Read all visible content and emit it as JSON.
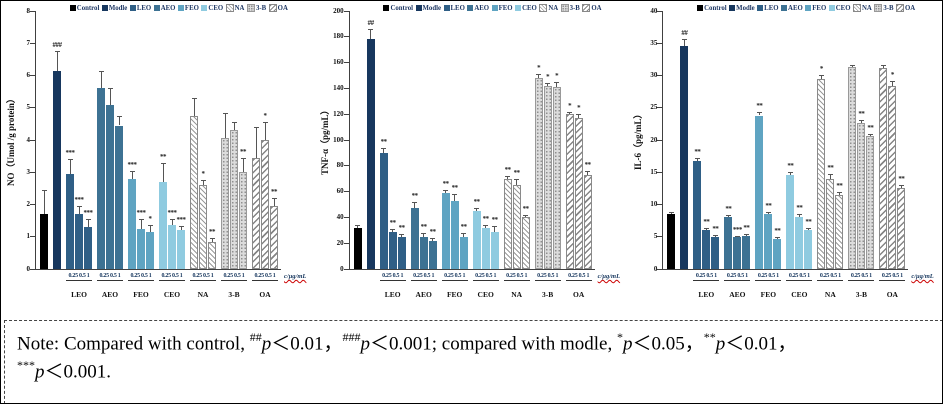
{
  "figure": {
    "colors": {
      "control": "#000000",
      "modle": "#17375E",
      "leo": "#2F5F86",
      "aeo": "#3D7293",
      "feo": "#5FA4C2",
      "ceo": "#8FCBE0",
      "legend_text": "#1F3864",
      "error_underline": "#CC0000"
    },
    "note": {
      "lead": "Note: Compared with control, ",
      "parts": [
        {
          "sup": "##",
          "text": "p＜0.01，"
        },
        {
          "sup": "###",
          "text": "p＜0.001; compared with modle, "
        },
        {
          "sup": "*",
          "text": "p＜0.05，"
        },
        {
          "sup": "**",
          "text": "p＜0.01，"
        },
        {
          "sup": "***",
          "text": "p＜0.001.",
          "newline_before": true
        }
      ]
    }
  },
  "chart_data": [
    {
      "type": "bar",
      "title": "",
      "ylabel": "NO（Umol /g protein）",
      "xlabel": "",
      "ylim": [
        0,
        8
      ],
      "ytick_step": 1,
      "grid": false,
      "legend_position": "top",
      "axis_unit_label": "c/μg/mL",
      "legend": [
        "Control",
        "Modle",
        "LEO",
        "AEO",
        "FEO",
        "CEO",
        "NA",
        "3-B",
        "OA"
      ],
      "groups": [
        {
          "name": "Control",
          "style": "control",
          "x_ticks": [],
          "values": [
            1.7
          ],
          "errors": [
            0.75
          ],
          "sig": [
            ""
          ]
        },
        {
          "name": "Modle",
          "style": "modle",
          "x_ticks": [],
          "values": [
            6.15
          ],
          "errors": [
            0.6
          ],
          "sig": [
            "###"
          ]
        },
        {
          "name": "LEO",
          "style": "leo",
          "x_ticks": [
            "0.25",
            "0.5",
            "1"
          ],
          "values": [
            2.95,
            1.7,
            1.3
          ],
          "errors": [
            0.45,
            0.25,
            0.25
          ],
          "sig": [
            "***",
            "***",
            "***"
          ]
        },
        {
          "name": "AEO",
          "style": "aeo",
          "x_ticks": [
            "0.25",
            "0.5",
            "1"
          ],
          "values": [
            5.6,
            5.1,
            4.45
          ],
          "errors": [
            0.55,
            0.5,
            0.3
          ],
          "sig": [
            "",
            "",
            ""
          ]
        },
        {
          "name": "FEO",
          "style": "feo",
          "x_ticks": [
            "0.25",
            "0.5",
            "1"
          ],
          "values": [
            2.8,
            1.25,
            1.15
          ],
          "errors": [
            0.25,
            0.3,
            0.2
          ],
          "sig": [
            "***",
            "***",
            "*"
          ]
        },
        {
          "name": "CEO",
          "style": "ceo",
          "x_ticks": [
            "0.25",
            "0.5",
            "1"
          ],
          "values": [
            2.7,
            1.35,
            1.2
          ],
          "errors": [
            0.6,
            0.2,
            0.12
          ],
          "sig": [
            "**",
            "***",
            "***"
          ]
        },
        {
          "name": "NA",
          "style": "na",
          "x_ticks": [
            "0.25",
            "0.5",
            "1"
          ],
          "values": [
            4.75,
            2.6,
            0.85
          ],
          "errors": [
            0.55,
            0.15,
            0.1
          ],
          "sig": [
            "",
            "*",
            "**"
          ]
        },
        {
          "name": "3-B",
          "style": "b3",
          "x_ticks": [
            "0.25",
            "0.5",
            "1"
          ],
          "values": [
            4.05,
            4.3,
            3.0
          ],
          "errors": [
            0.8,
            0.25,
            0.45
          ],
          "sig": [
            "",
            "",
            "**"
          ]
        },
        {
          "name": "OA",
          "style": "oa",
          "x_ticks": [
            "0.25",
            "0.5",
            "1"
          ],
          "values": [
            3.45,
            4.0,
            1.95
          ],
          "errors": [
            0.95,
            0.55,
            0.25
          ],
          "sig": [
            "",
            "*",
            "**"
          ]
        }
      ]
    },
    {
      "type": "bar",
      "title": "",
      "ylabel": "TNF-α（pg/mL）",
      "xlabel": "",
      "ylim": [
        0,
        200
      ],
      "ytick_step": 20,
      "grid": false,
      "legend_position": "top",
      "axis_unit_label": "c/μg/mL",
      "legend": [
        "Control",
        "Modle",
        "LEO",
        "AEO",
        "FEO",
        "CEO",
        "NA",
        "3-B",
        "OA"
      ],
      "groups": [
        {
          "name": "Control",
          "style": "control",
          "x_ticks": [],
          "values": [
            32
          ],
          "errors": [
            2
          ],
          "sig": [
            ""
          ]
        },
        {
          "name": "Modle",
          "style": "modle",
          "x_ticks": [],
          "values": [
            178
          ],
          "errors": [
            8
          ],
          "sig": [
            "##"
          ]
        },
        {
          "name": "LEO",
          "style": "leo",
          "x_ticks": [
            "0.25",
            "0.5",
            "1"
          ],
          "values": [
            90,
            29,
            25
          ],
          "errors": [
            4,
            2,
            2
          ],
          "sig": [
            "**",
            "**",
            "**"
          ]
        },
        {
          "name": "AEO",
          "style": "aeo",
          "x_ticks": [
            "0.25",
            "0.5",
            "1"
          ],
          "values": [
            47,
            25,
            22
          ],
          "errors": [
            5,
            3,
            2
          ],
          "sig": [
            "**",
            "**",
            "**"
          ]
        },
        {
          "name": "FEO",
          "style": "feo",
          "x_ticks": [
            "0.25",
            "0.5",
            "1"
          ],
          "values": [
            59,
            53,
            25
          ],
          "errors": [
            2,
            5,
            3
          ],
          "sig": [
            "**",
            "**",
            "**"
          ]
        },
        {
          "name": "CEO",
          "style": "ceo",
          "x_ticks": [
            "0.25",
            "0.5",
            "1"
          ],
          "values": [
            45,
            32,
            29
          ],
          "errors": [
            2,
            2,
            4
          ],
          "sig": [
            "**",
            "**",
            "**"
          ]
        },
        {
          "name": "NA",
          "style": "na",
          "x_ticks": [
            "0.25",
            "0.5",
            "1"
          ],
          "values": [
            70,
            65,
            40
          ],
          "errors": [
            2,
            5,
            2
          ],
          "sig": [
            "**",
            "**",
            "**"
          ]
        },
        {
          "name": "3-B",
          "style": "b3",
          "x_ticks": [
            "0.25",
            "0.5",
            "1"
          ],
          "values": [
            148,
            142,
            141
          ],
          "errors": [
            3,
            2,
            4
          ],
          "sig": [
            "*",
            "*",
            "*"
          ]
        },
        {
          "name": "OA",
          "style": "oa",
          "x_ticks": [
            "0.25",
            "0.5",
            "1"
          ],
          "values": [
            120,
            117,
            73
          ],
          "errors": [
            2,
            3,
            3
          ],
          "sig": [
            "*",
            "*",
            "**"
          ]
        }
      ]
    },
    {
      "type": "bar",
      "title": "",
      "ylabel": "IL-6（pg/mL）",
      "xlabel": "",
      "ylim": [
        0,
        40
      ],
      "ytick_step": 5,
      "grid": false,
      "legend_position": "top",
      "axis_unit_label": "c/μg/mL",
      "legend": [
        "Control",
        "Modle",
        "LEO",
        "AEO",
        "FEO",
        "CEO",
        "NA",
        "3-B",
        "OA"
      ],
      "groups": [
        {
          "name": "Control",
          "style": "control",
          "x_ticks": [],
          "values": [
            8.5
          ],
          "errors": [
            0.4
          ],
          "sig": [
            ""
          ]
        },
        {
          "name": "Modle",
          "style": "modle",
          "x_ticks": [],
          "values": [
            34.5
          ],
          "errors": [
            1.2
          ],
          "sig": [
            "##"
          ]
        },
        {
          "name": "LEO",
          "style": "leo",
          "x_ticks": [
            "0.25",
            "0.5",
            "1"
          ],
          "values": [
            16.7,
            6.0,
            5.0
          ],
          "errors": [
            0.5,
            0.4,
            0.3
          ],
          "sig": [
            "**",
            "**",
            "**"
          ]
        },
        {
          "name": "AEO",
          "style": "aeo",
          "x_ticks": [
            "0.25",
            "0.5",
            "1"
          ],
          "values": [
            8.0,
            4.9,
            5.1
          ],
          "errors": [
            0.3,
            0.2,
            0.3
          ],
          "sig": [
            "**",
            "***",
            "**"
          ]
        },
        {
          "name": "FEO",
          "style": "feo",
          "x_ticks": [
            "0.25",
            "0.5",
            "1"
          ],
          "values": [
            23.8,
            8.5,
            4.6
          ],
          "errors": [
            0.6,
            0.4,
            0.3
          ],
          "sig": [
            "**",
            "**",
            "**"
          ]
        },
        {
          "name": "CEO",
          "style": "ceo",
          "x_ticks": [
            "0.25",
            "0.5",
            "1"
          ],
          "values": [
            14.5,
            8.1,
            6.1
          ],
          "errors": [
            0.5,
            0.4,
            0.3
          ],
          "sig": [
            "**",
            "**",
            "**"
          ]
        },
        {
          "name": "NA",
          "style": "na",
          "x_ticks": [
            "0.25",
            "0.5",
            "1"
          ],
          "values": [
            29.5,
            14.0,
            11.4
          ],
          "errors": [
            0.6,
            0.8,
            0.6
          ],
          "sig": [
            "*",
            "**",
            "**"
          ]
        },
        {
          "name": "3-B",
          "style": "b3",
          "x_ticks": [
            "0.25",
            "0.5",
            "1"
          ],
          "values": [
            31.3,
            22.6,
            20.6
          ],
          "errors": [
            0.4,
            0.5,
            0.4
          ],
          "sig": [
            "",
            "**",
            "**"
          ]
        },
        {
          "name": "OA",
          "style": "oa",
          "x_ticks": [
            "0.25",
            "0.5",
            "1"
          ],
          "values": [
            31.2,
            28.3,
            12.5
          ],
          "errors": [
            0.5,
            0.9,
            0.5
          ],
          "sig": [
            "",
            "*",
            "**"
          ]
        }
      ]
    }
  ]
}
